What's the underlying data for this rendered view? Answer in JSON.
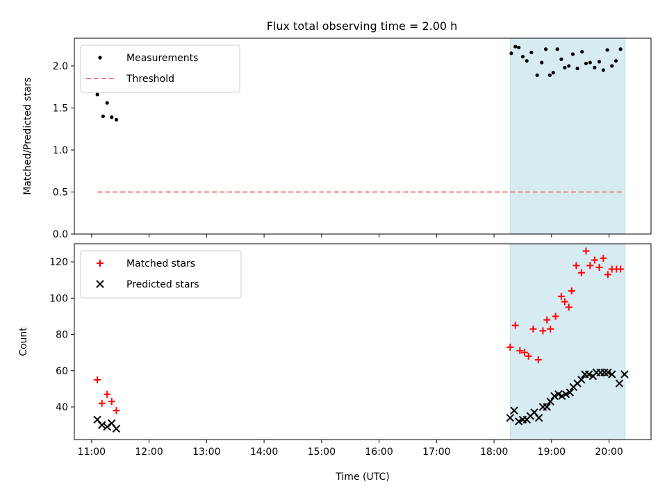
{
  "title": "Flux total observing time = 2.00 h",
  "colors": {
    "threshold": "#f08080",
    "shade": "#add8e6",
    "matched": "#ff0000",
    "predicted": "#000000",
    "measure": "#000000"
  },
  "chart_data": [
    {
      "type": "scatter",
      "ylabel": "Matched/Predicted stars",
      "xlabel": "",
      "ylim": [
        0,
        2.33
      ],
      "yticks": [
        0.0,
        0.5,
        1.0,
        1.5,
        2.0
      ],
      "ytick_labels": [
        "0.0",
        "0.5",
        "1.0",
        "1.5",
        "2.0"
      ],
      "xlim": [
        10.7,
        20.73
      ],
      "xticks": [
        11,
        12,
        13,
        14,
        15,
        16,
        17,
        18,
        19,
        20
      ],
      "shaded_span": [
        18.28,
        20.28
      ],
      "legend": {
        "placement": "upper-left",
        "entries": [
          "Measurements",
          "Threshold"
        ]
      },
      "series": [
        {
          "name": "Measurements",
          "x": [
            11.1,
            11.2,
            11.27,
            11.35,
            11.43,
            18.3,
            18.37,
            18.43,
            18.5,
            18.57,
            18.65,
            18.75,
            18.83,
            18.9,
            18.97,
            19.03,
            19.1,
            19.17,
            19.23,
            19.3,
            19.37,
            19.45,
            19.53,
            19.6,
            19.67,
            19.75,
            19.83,
            19.9,
            19.97,
            20.05,
            20.12,
            20.2
          ],
          "y": [
            1.66,
            1.4,
            1.56,
            1.39,
            1.36,
            2.15,
            2.23,
            2.22,
            2.11,
            2.06,
            2.16,
            1.89,
            2.04,
            2.2,
            1.89,
            1.92,
            2.2,
            2.08,
            1.98,
            2.0,
            2.14,
            1.97,
            2.17,
            2.03,
            2.04,
            1.98,
            2.05,
            1.95,
            2.19,
            2.0,
            2.06,
            2.2
          ]
        },
        {
          "name": "Threshold",
          "x": [
            11.1,
            20.28
          ],
          "y": [
            0.5,
            0.5
          ]
        }
      ]
    },
    {
      "type": "scatter",
      "ylabel": "Count",
      "xlabel": "Time (UTC)",
      "ylim": [
        22,
        130
      ],
      "yticks": [
        40,
        60,
        80,
        100,
        120
      ],
      "ytick_labels": [
        "40",
        "60",
        "80",
        "100",
        "120"
      ],
      "xlim": [
        10.7,
        20.73
      ],
      "xticks": [
        11,
        12,
        13,
        14,
        15,
        16,
        17,
        18,
        19,
        20
      ],
      "xtick_labels": [
        "11:00",
        "12:00",
        "13:00",
        "14:00",
        "15:00",
        "16:00",
        "17:00",
        "18:00",
        "19:00",
        "20:00"
      ],
      "shaded_span": [
        18.28,
        20.28
      ],
      "legend": {
        "placement": "upper-left",
        "entries": [
          "Matched stars",
          "Predicted stars"
        ]
      },
      "series": [
        {
          "name": "Matched stars",
          "x": [
            11.1,
            11.18,
            11.27,
            11.35,
            11.43,
            18.28,
            18.37,
            18.45,
            18.53,
            18.6,
            18.68,
            18.77,
            18.85,
            18.92,
            18.98,
            19.07,
            19.17,
            19.23,
            19.3,
            19.35,
            19.43,
            19.52,
            19.6,
            19.67,
            19.75,
            19.83,
            19.9,
            19.98,
            20.05,
            20.13,
            20.2
          ],
          "y": [
            55,
            42,
            47,
            43,
            38,
            73,
            85,
            71,
            70,
            68,
            83,
            66,
            82,
            88,
            83,
            90,
            101,
            98,
            95,
            104,
            118,
            114,
            126,
            118,
            121,
            117,
            122,
            113,
            116,
            116,
            116
          ]
        },
        {
          "name": "Predicted stars",
          "x": [
            11.1,
            11.18,
            11.27,
            11.35,
            11.43,
            18.28,
            18.35,
            18.43,
            18.5,
            18.57,
            18.63,
            18.7,
            18.78,
            18.85,
            18.92,
            18.98,
            19.05,
            19.12,
            19.18,
            19.25,
            19.32,
            19.38,
            19.45,
            19.52,
            19.58,
            19.65,
            19.72,
            19.78,
            19.85,
            19.92,
            19.98,
            20.05,
            20.18,
            20.27
          ],
          "y": [
            33,
            30,
            29,
            31,
            28,
            34,
            38,
            32,
            33,
            33,
            35,
            37,
            34,
            40,
            40,
            43,
            46,
            47,
            46,
            47,
            48,
            51,
            53,
            55,
            58,
            58,
            57,
            59,
            59,
            59,
            59,
            58,
            53,
            58
          ]
        }
      ]
    }
  ]
}
